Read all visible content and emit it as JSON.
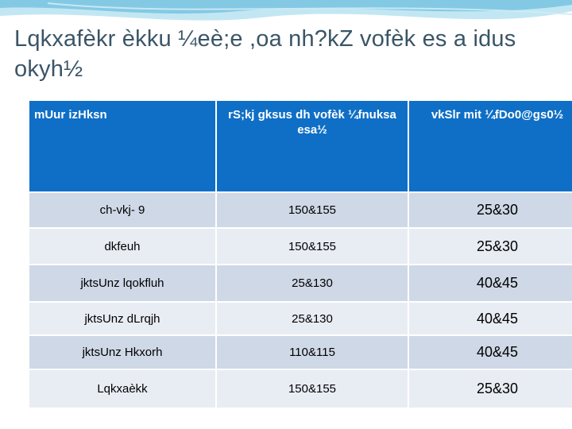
{
  "title": "Lqkxafèkr èkku ¼eè;e ,oa nh?kΖ vofèk es a idus okyh½",
  "table": {
    "headers": [
      "mUur izHksn",
      "rS;kj gksus dh vofèk ¼fnuksa esa½",
      "vkSlr mit ¼fDo0@gs0½"
    ],
    "rows": [
      {
        "name": "ch-vkj- 9",
        "days": "150&155",
        "yield": "25&30"
      },
      {
        "name": "dkfeuh",
        "days": "150&155",
        "yield": "25&30"
      },
      {
        "name": "jktsUnz lqokfluh",
        "days": "25&130",
        "yield": "40&45"
      },
      {
        "name": "jktsUnz dLrqjh",
        "days": "25&130",
        "yield": "40&45"
      },
      {
        "name": "jktsUnz Hkxorh",
        "days": "110&115",
        "yield": "40&45"
      },
      {
        "name": "Lqkxaèkk",
        "days": "150&155",
        "yield": "25&30"
      }
    ]
  },
  "colors": {
    "header_bg": "#0f6fc6",
    "row_odd": "#cfd8e6",
    "row_even": "#e8edf4",
    "title": "#3a5567"
  }
}
